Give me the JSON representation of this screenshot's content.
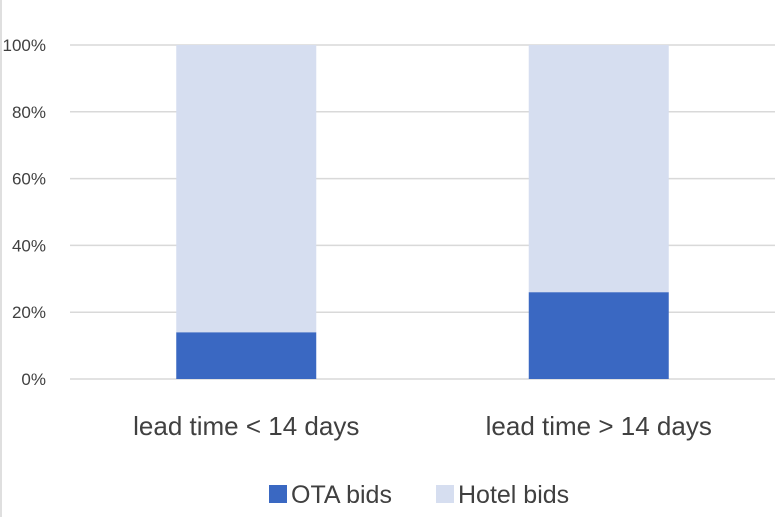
{
  "chart_data": {
    "type": "bar",
    "stacked": true,
    "percent": true,
    "categories": [
      "lead time < 14 days",
      "lead time > 14 days"
    ],
    "series": [
      {
        "name": "OTA bids",
        "values": [
          14,
          26
        ],
        "color": "#3a68c2"
      },
      {
        "name": "Hotel bids",
        "values": [
          86,
          74
        ],
        "color": "#d6def0"
      }
    ],
    "ylim": [
      0,
      100
    ],
    "yticks": [
      0,
      20,
      40,
      60,
      80,
      100
    ],
    "ytick_labels": [
      "0%",
      "20%",
      "40%",
      "60%",
      "80%",
      "100%"
    ],
    "grid": true,
    "legend_position": "bottom"
  }
}
